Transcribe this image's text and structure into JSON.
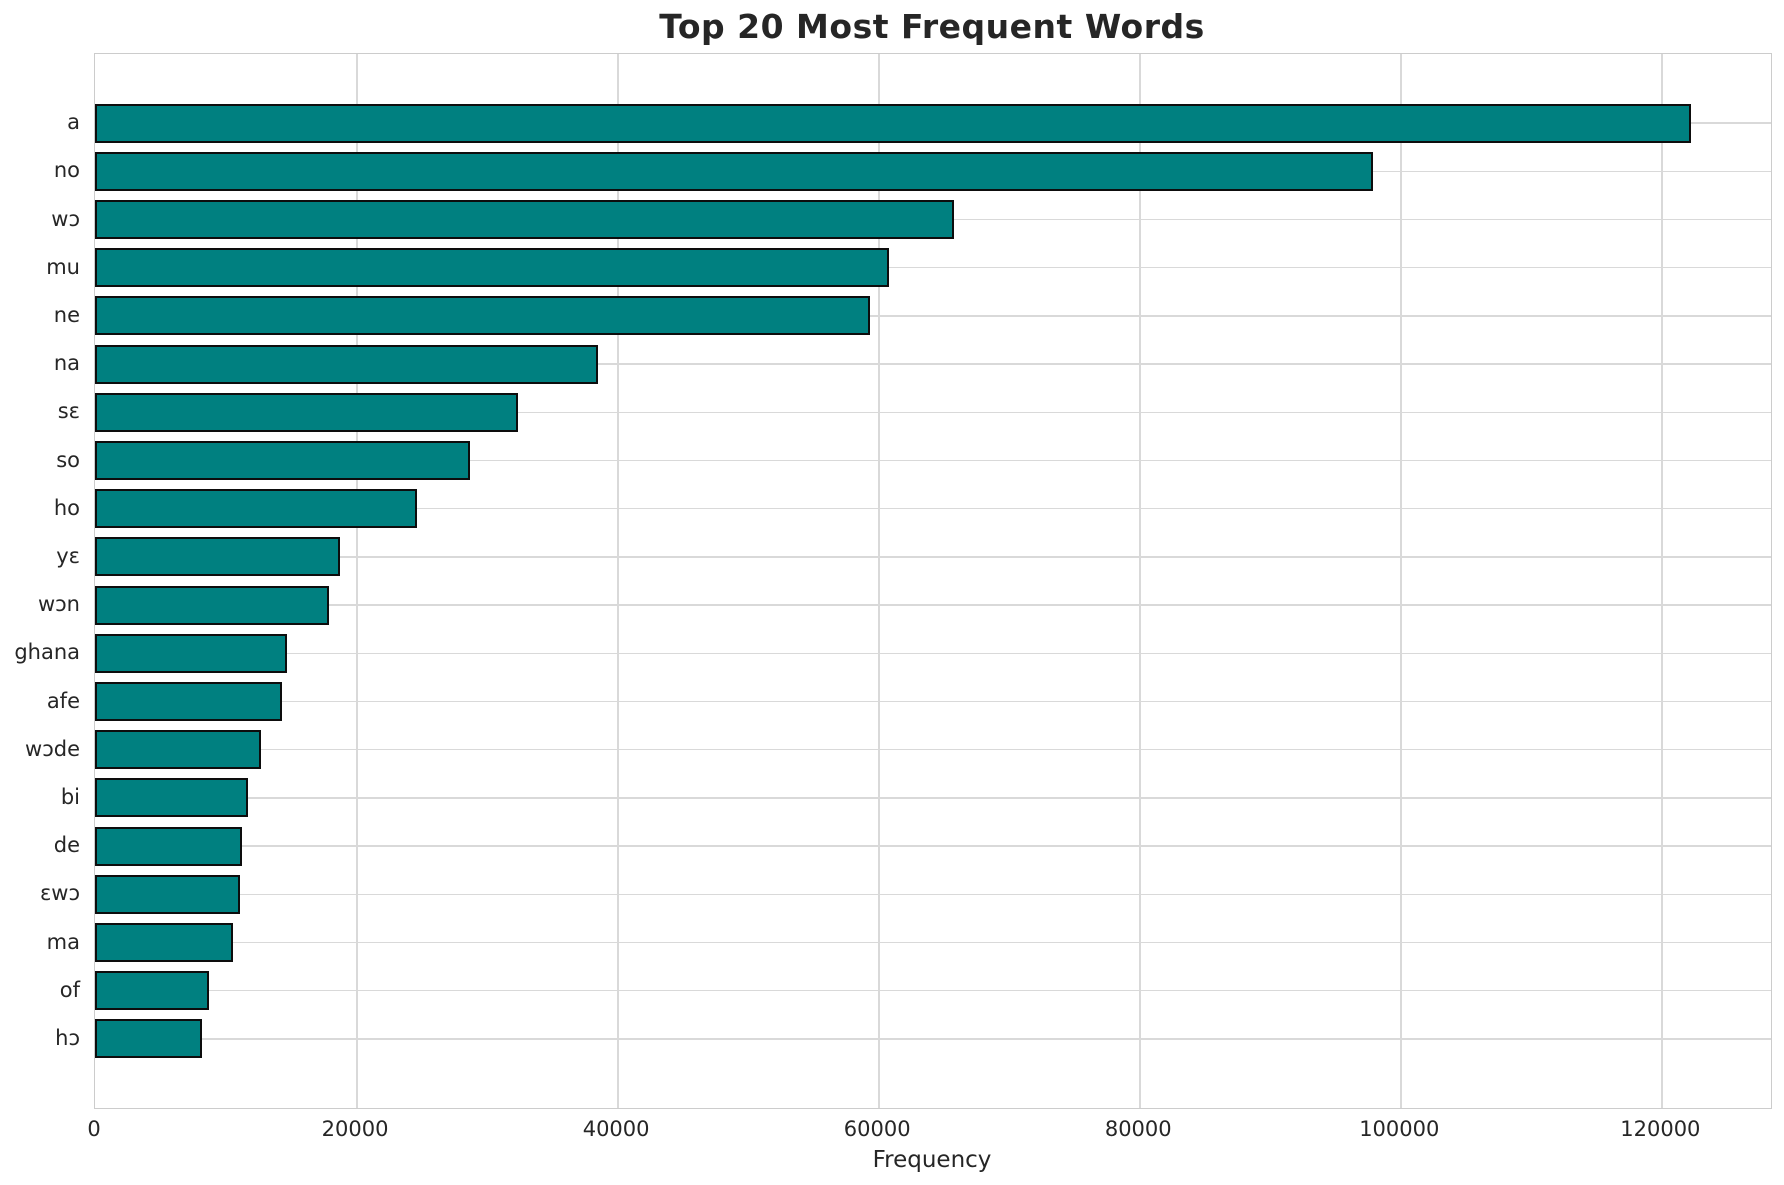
{
  "chart_data": {
    "type": "bar",
    "orientation": "horizontal",
    "title": "Top 20 Most Frequent Words",
    "xlabel": "Frequency",
    "ylabel": "",
    "categories": [
      "a",
      "no",
      "wɔ",
      "mu",
      "ne",
      "na",
      "sɛ",
      "so",
      "ho",
      "yɛ",
      "wɔn",
      "ghana",
      "afe",
      "wɔde",
      "bi",
      "de",
      "ɛwɔ",
      "ma",
      "of",
      "hɔ"
    ],
    "values": [
      122300,
      97900,
      65800,
      60800,
      59400,
      38500,
      32400,
      28700,
      24700,
      18800,
      17900,
      14700,
      14300,
      12700,
      11700,
      11300,
      11100,
      10600,
      8700,
      8200
    ],
    "xlim": [
      0,
      128400
    ],
    "xticks": [
      0,
      20000,
      40000,
      60000,
      80000,
      100000,
      120000
    ],
    "grid": true,
    "legend_position": "none",
    "colors": {
      "bar_fill": "#008080",
      "bar_edge": "#0d0d0d",
      "grid": "#d9d9d9",
      "spine": "#cccccc",
      "text": "#262626",
      "background": "#ffffff"
    }
  }
}
